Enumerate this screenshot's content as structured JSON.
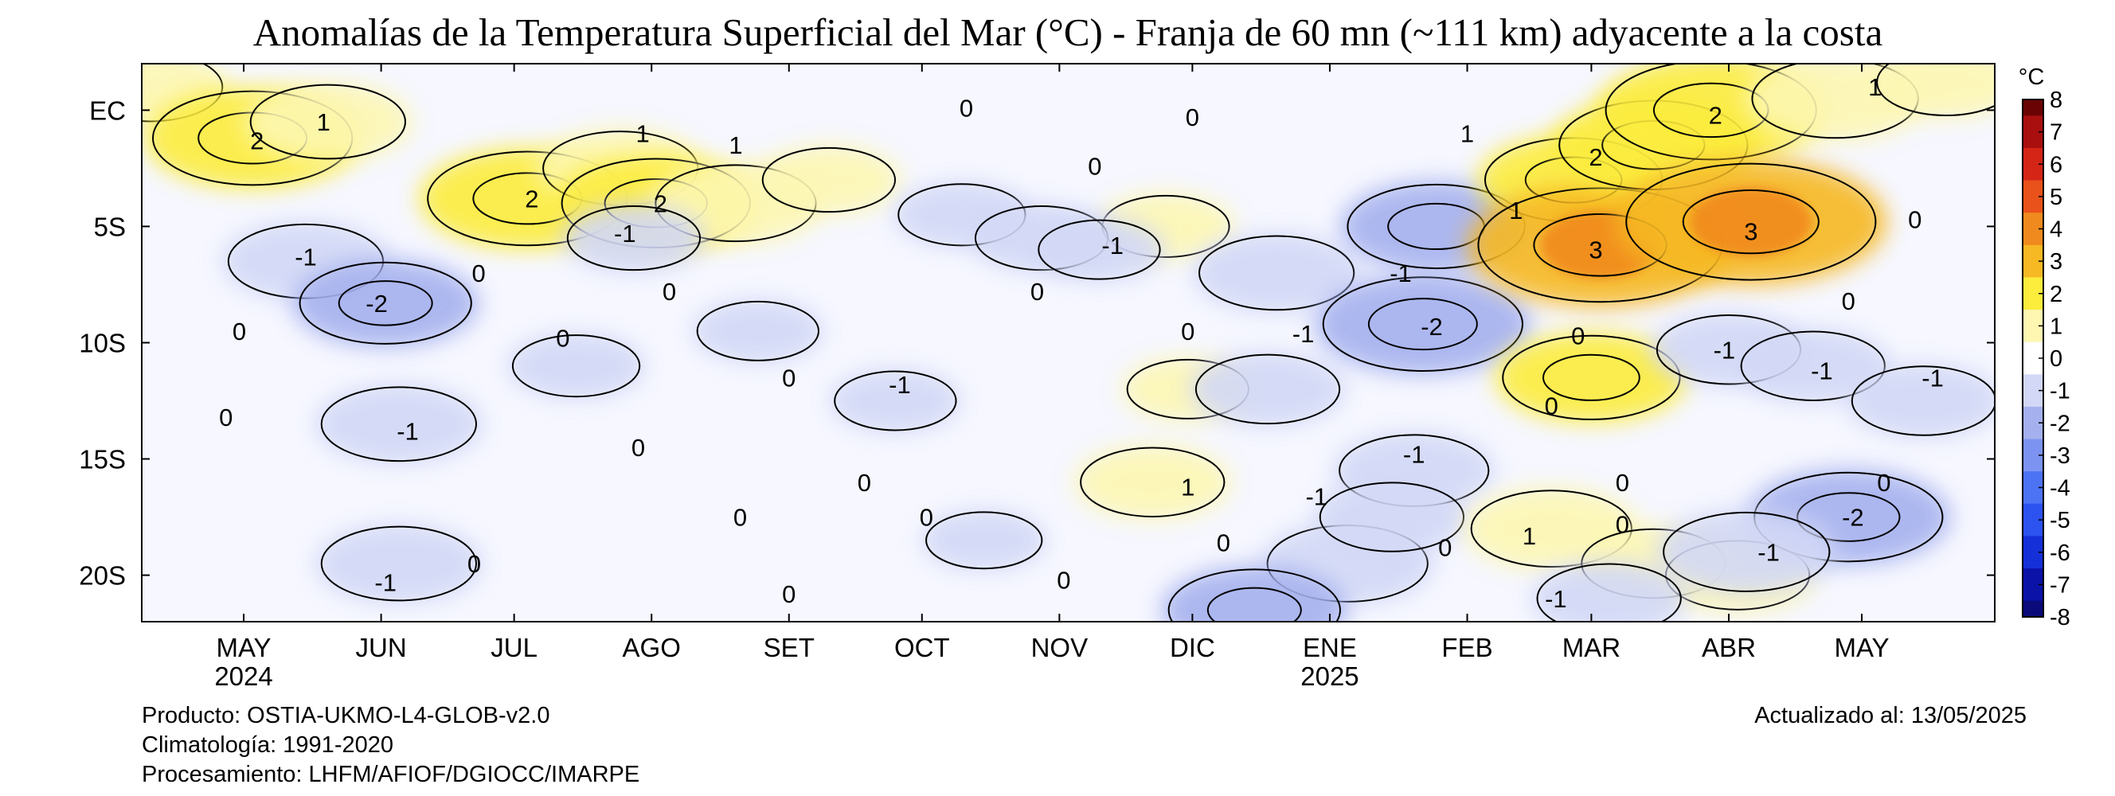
{
  "chart_data": {
    "type": "heatmap",
    "title": "Anomalías de la Temperatura Superficial del Mar (°C) - Franja de 60 mn (~111 km) adyacente a la costa",
    "x_axis": {
      "type": "time",
      "range": [
        "2024-04-08",
        "2025-05-31"
      ],
      "ticks": [
        {
          "date": "2024-05-01",
          "label": "MAY",
          "year": "2024"
        },
        {
          "date": "2024-06-01",
          "label": "JUN"
        },
        {
          "date": "2024-07-01",
          "label": "JUL"
        },
        {
          "date": "2024-08-01",
          "label": "AGO"
        },
        {
          "date": "2024-09-01",
          "label": "SET"
        },
        {
          "date": "2024-10-01",
          "label": "OCT"
        },
        {
          "date": "2024-11-01",
          "label": "NOV"
        },
        {
          "date": "2024-12-01",
          "label": "DIC"
        },
        {
          "date": "2025-01-01",
          "label": "ENE",
          "year": "2025"
        },
        {
          "date": "2025-02-01",
          "label": "FEB"
        },
        {
          "date": "2025-03-01",
          "label": "MAR"
        },
        {
          "date": "2025-04-01",
          "label": "ABR"
        },
        {
          "date": "2025-05-01",
          "label": "MAY"
        }
      ]
    },
    "y_axis": {
      "type": "latitude",
      "range": [
        -22,
        2
      ],
      "ticks": [
        {
          "lat": 0,
          "label": "EC"
        },
        {
          "lat": -5,
          "label": "5S"
        },
        {
          "lat": -10,
          "label": "10S"
        },
        {
          "lat": -15,
          "label": "15S"
        },
        {
          "lat": -20,
          "label": "20S"
        }
      ]
    },
    "colorbar": {
      "unit": "°C",
      "min": -8,
      "max": 8,
      "ticks": [
        8,
        7,
        6,
        5,
        4,
        3,
        2,
        1,
        0,
        -1,
        -2,
        -3,
        -4,
        -5,
        -6,
        -7,
        -8
      ],
      "colors": {
        "-8": "#0a0a7a",
        "-7": "#0b12a8",
        "-6": "#1530d8",
        "-5": "#2c52f0",
        "-4": "#4d73f5",
        "-3": "#7c93f2",
        "-2": "#a5b1ee",
        "-1": "#d2d8f6",
        "0": "#ffffff",
        "1": "#fdf7b2",
        "2": "#fcec3c",
        "3": "#f6b823",
        "4": "#f18a1e",
        "5": "#e9521a",
        "6": "#d42516",
        "7": "#a90f0f",
        "8": "#6a0404"
      }
    },
    "anomaly_patches": [
      {
        "date": "2024-04-10",
        "lat": 1.0,
        "v": 1.0
      },
      {
        "date": "2024-05-03",
        "lat": -1.2,
        "v": 2.0
      },
      {
        "date": "2024-05-20",
        "lat": -0.5,
        "v": 1.2
      },
      {
        "date": "2024-07-04",
        "lat": -3.8,
        "v": 2.0
      },
      {
        "date": "2024-07-25",
        "lat": -2.5,
        "v": 1.2
      },
      {
        "date": "2024-08-02",
        "lat": -4.0,
        "v": 1.8
      },
      {
        "date": "2024-08-20",
        "lat": -4.0,
        "v": 1.3
      },
      {
        "date": "2024-09-10",
        "lat": -3.0,
        "v": 0.8
      },
      {
        "date": "2024-11-25",
        "lat": -5.0,
        "v": 0.7
      },
      {
        "date": "2024-11-30",
        "lat": -12.0,
        "v": 0.6
      },
      {
        "date": "2024-11-22",
        "lat": -16.0,
        "v": 1.0
      },
      {
        "date": "2024-05-15",
        "lat": -6.5,
        "v": -1.2
      },
      {
        "date": "2024-06-02",
        "lat": -8.3,
        "v": -1.5
      },
      {
        "date": "2024-06-05",
        "lat": -13.5,
        "v": -1.2
      },
      {
        "date": "2024-06-05",
        "lat": -19.5,
        "v": -1.2
      },
      {
        "date": "2024-07-15",
        "lat": -11.0,
        "v": -0.7
      },
      {
        "date": "2024-07-28",
        "lat": -5.5,
        "v": -0.8
      },
      {
        "date": "2024-08-25",
        "lat": -9.5,
        "v": -0.6
      },
      {
        "date": "2024-09-25",
        "lat": -12.5,
        "v": -0.6
      },
      {
        "date": "2024-10-10",
        "lat": -4.5,
        "v": -0.7
      },
      {
        "date": "2024-10-28",
        "lat": -5.5,
        "v": -0.8
      },
      {
        "date": "2024-11-10",
        "lat": -6.0,
        "v": -0.6
      },
      {
        "date": "2024-10-15",
        "lat": -18.5,
        "v": -0.5
      },
      {
        "date": "2024-12-20",
        "lat": -7.0,
        "v": -1.2
      },
      {
        "date": "2024-12-18",
        "lat": -12.0,
        "v": -1.0
      },
      {
        "date": "2025-01-05",
        "lat": -19.5,
        "v": -1.3
      },
      {
        "date": "2024-12-15",
        "lat": -21.5,
        "v": -1.5
      },
      {
        "date": "2025-01-22",
        "lat": -9.2,
        "v": -2.0
      },
      {
        "date": "2025-01-25",
        "lat": -5.0,
        "v": -1.6
      },
      {
        "date": "2025-01-20",
        "lat": -15.5,
        "v": -1.1
      },
      {
        "date": "2025-01-15",
        "lat": -17.5,
        "v": -1.0
      },
      {
        "date": "2025-02-25",
        "lat": -3.0,
        "v": 1.6
      },
      {
        "date": "2025-03-03",
        "lat": -5.8,
        "v": 2.8
      },
      {
        "date": "2025-03-15",
        "lat": -1.5,
        "v": 1.8
      },
      {
        "date": "2025-03-28",
        "lat": 0.0,
        "v": 2.2
      },
      {
        "date": "2025-04-06",
        "lat": -4.8,
        "v": 2.9
      },
      {
        "date": "2025-04-25",
        "lat": 0.5,
        "v": 1.4
      },
      {
        "date": "2025-05-20",
        "lat": 1.2,
        "v": 0.9
      },
      {
        "date": "2025-03-01",
        "lat": -11.5,
        "v": 1.6
      },
      {
        "date": "2025-02-20",
        "lat": -18.0,
        "v": 1.3
      },
      {
        "date": "2025-03-15",
        "lat": -19.5,
        "v": 1.0
      },
      {
        "date": "2025-04-03",
        "lat": -20.0,
        "v": 1.0
      },
      {
        "date": "2025-04-01",
        "lat": -10.3,
        "v": -1.0
      },
      {
        "date": "2025-04-20",
        "lat": -11.0,
        "v": -1.0
      },
      {
        "date": "2025-05-15",
        "lat": -12.5,
        "v": -1.0
      },
      {
        "date": "2025-04-28",
        "lat": -17.5,
        "v": -1.8
      },
      {
        "date": "2025-04-05",
        "lat": -19.0,
        "v": -1.4
      },
      {
        "date": "2025-03-05",
        "lat": -21.0,
        "v": -1.0
      }
    ],
    "contour_labels": [
      {
        "date": "2024-05-04",
        "lat": -1.3,
        "label": "2"
      },
      {
        "date": "2024-05-19",
        "lat": -0.5,
        "label": "1"
      },
      {
        "date": "2024-07-05",
        "lat": -3.8,
        "label": "2"
      },
      {
        "date": "2024-07-30",
        "lat": -1.0,
        "label": "1"
      },
      {
        "date": "2024-08-20",
        "lat": -1.5,
        "label": "1"
      },
      {
        "date": "2024-08-03",
        "lat": -4.0,
        "label": "2"
      },
      {
        "date": "2024-05-15",
        "lat": -6.3,
        "label": "-1"
      },
      {
        "date": "2024-05-31",
        "lat": -8.3,
        "label": "-2"
      },
      {
        "date": "2024-06-23",
        "lat": -7.0,
        "label": "0"
      },
      {
        "date": "2024-04-30",
        "lat": -9.5,
        "label": "0"
      },
      {
        "date": "2024-07-12",
        "lat": -9.8,
        "label": "0"
      },
      {
        "date": "2024-07-26",
        "lat": -5.3,
        "label": "-1"
      },
      {
        "date": "2024-08-05",
        "lat": -7.8,
        "label": "0"
      },
      {
        "date": "2024-04-27",
        "lat": -13.2,
        "label": "0"
      },
      {
        "date": "2024-06-07",
        "lat": -13.8,
        "label": "-1"
      },
      {
        "date": "2024-07-29",
        "lat": -14.5,
        "label": "0"
      },
      {
        "date": "2024-09-26",
        "lat": -11.8,
        "label": "-1"
      },
      {
        "date": "2024-09-01",
        "lat": -11.5,
        "label": "0"
      },
      {
        "date": "2024-09-18",
        "lat": -16.0,
        "label": "0"
      },
      {
        "date": "2024-08-21",
        "lat": -17.5,
        "label": "0"
      },
      {
        "date": "2024-10-02",
        "lat": -17.5,
        "label": "0"
      },
      {
        "date": "2024-06-22",
        "lat": -19.5,
        "label": "0"
      },
      {
        "date": "2024-06-02",
        "lat": -20.3,
        "label": "-1"
      },
      {
        "date": "2024-09-01",
        "lat": -20.8,
        "label": "0"
      },
      {
        "date": "2024-10-11",
        "lat": 0.1,
        "label": "0"
      },
      {
        "date": "2024-11-09",
        "lat": -2.4,
        "label": "0"
      },
      {
        "date": "2024-10-27",
        "lat": -7.8,
        "label": "0"
      },
      {
        "date": "2024-11-13",
        "lat": -5.8,
        "label": "-1"
      },
      {
        "date": "2024-11-30",
        "lat": -9.5,
        "label": "0"
      },
      {
        "date": "2024-12-01",
        "lat": -0.3,
        "label": "0"
      },
      {
        "date": "2024-11-30",
        "lat": -16.2,
        "label": "1"
      },
      {
        "date": "2024-12-08",
        "lat": -18.6,
        "label": "0"
      },
      {
        "date": "2024-11-02",
        "lat": -20.2,
        "label": "0"
      },
      {
        "date": "2024-12-26",
        "lat": -9.6,
        "label": "-1"
      },
      {
        "date": "2025-01-17",
        "lat": -7.0,
        "label": "-1"
      },
      {
        "date": "2025-01-24",
        "lat": -9.3,
        "label": "-2"
      },
      {
        "date": "2025-01-20",
        "lat": -14.8,
        "label": "-1"
      },
      {
        "date": "2024-12-29",
        "lat": -16.6,
        "label": "-1"
      },
      {
        "date": "2025-01-27",
        "lat": -18.8,
        "label": "0"
      },
      {
        "date": "2025-02-01",
        "lat": -1.0,
        "label": "1"
      },
      {
        "date": "2025-02-12",
        "lat": -4.3,
        "label": "1"
      },
      {
        "date": "2025-03-02",
        "lat": -2.0,
        "label": "2"
      },
      {
        "date": "2025-03-02",
        "lat": -6.0,
        "label": "3"
      },
      {
        "date": "2025-03-29",
        "lat": -0.2,
        "label": "2"
      },
      {
        "date": "2025-04-06",
        "lat": -5.2,
        "label": "3"
      },
      {
        "date": "2025-05-04",
        "lat": 1.0,
        "label": "1"
      },
      {
        "date": "2025-05-13",
        "lat": -4.7,
        "label": "0"
      },
      {
        "date": "2025-04-28",
        "lat": -8.2,
        "label": "0"
      },
      {
        "date": "2025-02-26",
        "lat": -9.7,
        "label": "0"
      },
      {
        "date": "2025-02-20",
        "lat": -12.7,
        "label": "0"
      },
      {
        "date": "2025-03-31",
        "lat": -10.3,
        "label": "-1"
      },
      {
        "date": "2025-04-22",
        "lat": -11.2,
        "label": "-1"
      },
      {
        "date": "2025-05-17",
        "lat": -11.5,
        "label": "-1"
      },
      {
        "date": "2025-03-08",
        "lat": -16.0,
        "label": "0"
      },
      {
        "date": "2025-05-06",
        "lat": -16.0,
        "label": "0"
      },
      {
        "date": "2025-02-15",
        "lat": -18.3,
        "label": "1"
      },
      {
        "date": "2025-03-08",
        "lat": -17.8,
        "label": "0"
      },
      {
        "date": "2025-04-29",
        "lat": -17.5,
        "label": "-2"
      },
      {
        "date": "2025-04-10",
        "lat": -19.0,
        "label": "-1"
      },
      {
        "date": "2025-02-21",
        "lat": -21.0,
        "label": "-1"
      }
    ]
  },
  "footer": {
    "left_lines": [
      "Producto: OSTIA-UKMO-L4-GLOB-v2.0",
      "Climatología: 1991-2020",
      "Procesamiento: LHFM/AFIOF/DGIOCC/IMARPE"
    ],
    "right": "Actualizado al: 13/05/2025"
  }
}
